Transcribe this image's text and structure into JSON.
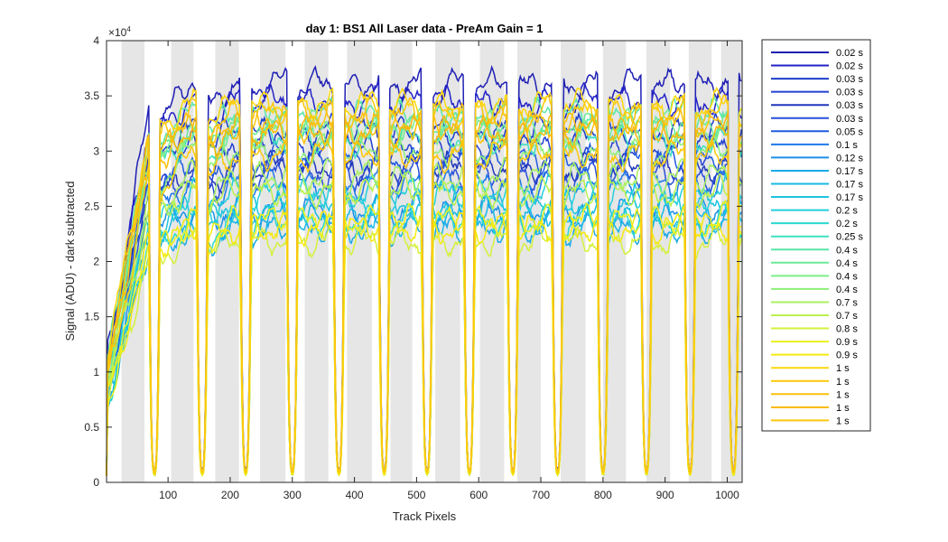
{
  "chart_data": {
    "type": "line",
    "title": "day 1: BS1  All Laser data - PreAm Gain = 1",
    "xlabel": "Track Pixels",
    "ylabel": "Signal (ADU) - dark subtracted",
    "y_exponent_label": "×10",
    "y_exponent_power": "4",
    "xlim": [
      1,
      1024
    ],
    "ylim": [
      0,
      40000
    ],
    "x_ticks": [
      100,
      200,
      300,
      400,
      500,
      600,
      700,
      800,
      900,
      1000
    ],
    "x_tick_labels": [
      "100",
      "200",
      "300",
      "400",
      "500",
      "600",
      "700",
      "800",
      "900",
      "1000"
    ],
    "y_ticks": [
      0,
      5000,
      10000,
      15000,
      20000,
      25000,
      30000,
      35000,
      40000
    ],
    "y_tick_labels": [
      "0",
      "0.5",
      "1",
      "1.5",
      "2",
      "2.5",
      "3",
      "3.5",
      "4"
    ],
    "grid": false,
    "legend_position": "outside-right",
    "shaded_bands": [
      [
        25,
        62
      ],
      [
        105,
        141
      ],
      [
        176,
        214
      ],
      [
        248,
        289
      ],
      [
        320,
        358
      ],
      [
        388,
        428
      ],
      [
        458,
        493
      ],
      [
        530,
        570
      ],
      [
        602,
        641
      ],
      [
        662,
        700
      ],
      [
        732,
        772
      ],
      [
        800,
        837
      ],
      [
        870,
        908
      ],
      [
        938,
        975
      ],
      [
        990,
        1024
      ]
    ],
    "shade_color": "#e6e6e6",
    "track_gap_centers": [
      78,
      155,
      225,
      300,
      375,
      448,
      517,
      585,
      655,
      727,
      800,
      870,
      940,
      1010
    ],
    "series": [
      {
        "name": "0.02 s",
        "color": "#1f1fb4",
        "level": 0.91
      },
      {
        "name": "0.02 s",
        "color": "#2323c8",
        "level": 0.87
      },
      {
        "name": "0.03 s",
        "color": "#1d3dc8",
        "level": 0.8
      },
      {
        "name": "0.03 s",
        "color": "#2340d0",
        "level": 0.76
      },
      {
        "name": "0.03 s",
        "color": "#1f36bc",
        "level": 0.72
      },
      {
        "name": "0.03 s",
        "color": "#2a4fd8",
        "level": 0.7
      },
      {
        "name": "0.05 s",
        "color": "#1f5ae0",
        "level": 0.74
      },
      {
        "name": "0.1 s",
        "color": "#1e78e8",
        "level": 0.68
      },
      {
        "name": "0.12 s",
        "color": "#1c8fe8",
        "level": 0.62
      },
      {
        "name": "0.17 s",
        "color": "#1aa8e6",
        "level": 0.58
      },
      {
        "name": "0.17 s",
        "color": "#19b8e6",
        "level": 0.6
      },
      {
        "name": "0.17 s",
        "color": "#1cc4e0",
        "level": 0.64
      },
      {
        "name": "0.2 s",
        "color": "#22d0dc",
        "level": 0.66
      },
      {
        "name": "0.2 s",
        "color": "#2ad8d0",
        "level": 0.6
      },
      {
        "name": "0.25 s",
        "color": "#3ee0c0",
        "level": 0.78
      },
      {
        "name": "0.4 s",
        "color": "#58e6a8",
        "level": 0.84
      },
      {
        "name": "0.4 s",
        "color": "#6cea96",
        "level": 0.82
      },
      {
        "name": "0.4 s",
        "color": "#7cee86",
        "level": 0.8
      },
      {
        "name": "0.4 s",
        "color": "#8cf078",
        "level": 0.76
      },
      {
        "name": "0.7 s",
        "color": "#a8f060",
        "level": 0.7
      },
      {
        "name": "0.7 s",
        "color": "#bcf04e",
        "level": 0.66
      },
      {
        "name": "0.8 s",
        "color": "#d6f03c",
        "level": 0.55
      },
      {
        "name": "0.9 s",
        "color": "#ecf01e",
        "level": 0.6
      },
      {
        "name": "0.9 s",
        "color": "#f4ea10",
        "level": 0.58
      },
      {
        "name": "1 s",
        "color": "#fcd80c",
        "level": 0.86
      },
      {
        "name": "1 s",
        "color": "#fcc80a",
        "level": 0.84
      },
      {
        "name": "1 s",
        "color": "#fcc00a",
        "level": 0.82
      },
      {
        "name": "1 s",
        "color": "#f8b80a",
        "level": 0.8
      },
      {
        "name": "1 s",
        "color": "#fcc80c",
        "level": 0.75
      }
    ]
  }
}
